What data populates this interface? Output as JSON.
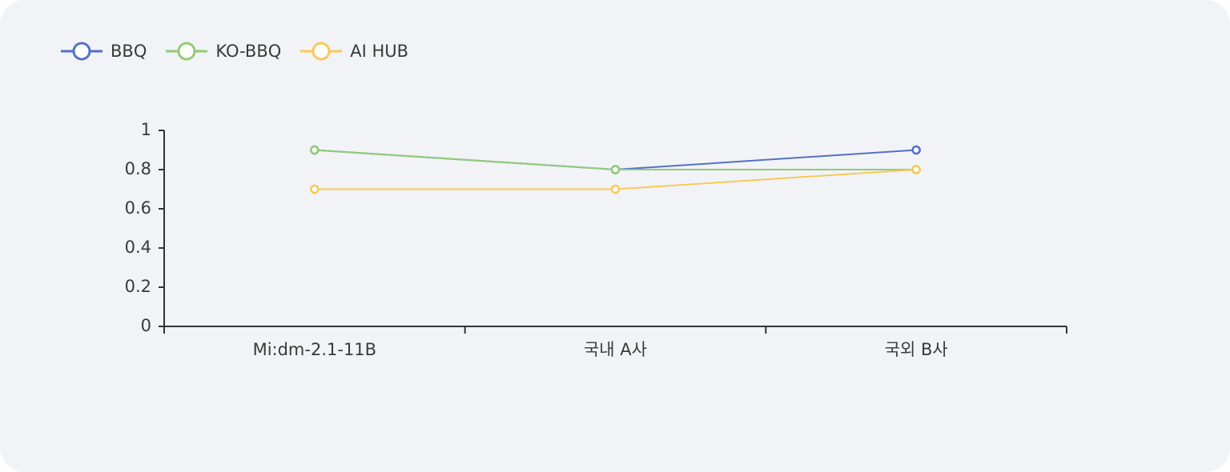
{
  "chart_data": {
    "type": "line",
    "categories": [
      "Mi:dm-2.1-11B",
      "국내 A사",
      "국외 B사"
    ],
    "series": [
      {
        "name": "BBQ",
        "color": "#5470c6",
        "values": [
          0.9,
          0.8,
          0.9
        ]
      },
      {
        "name": "KO-BBQ",
        "color": "#91cc75",
        "values": [
          0.9,
          0.8,
          0.8
        ]
      },
      {
        "name": "AI HUB",
        "color": "#fac858",
        "values": [
          0.7,
          0.7,
          0.8
        ]
      }
    ],
    "yticks": [
      "0",
      "0.2",
      "0.4",
      "0.6",
      "0.8",
      "1"
    ],
    "ylim": [
      0,
      1
    ],
    "legend": "top-left",
    "grid": false
  }
}
